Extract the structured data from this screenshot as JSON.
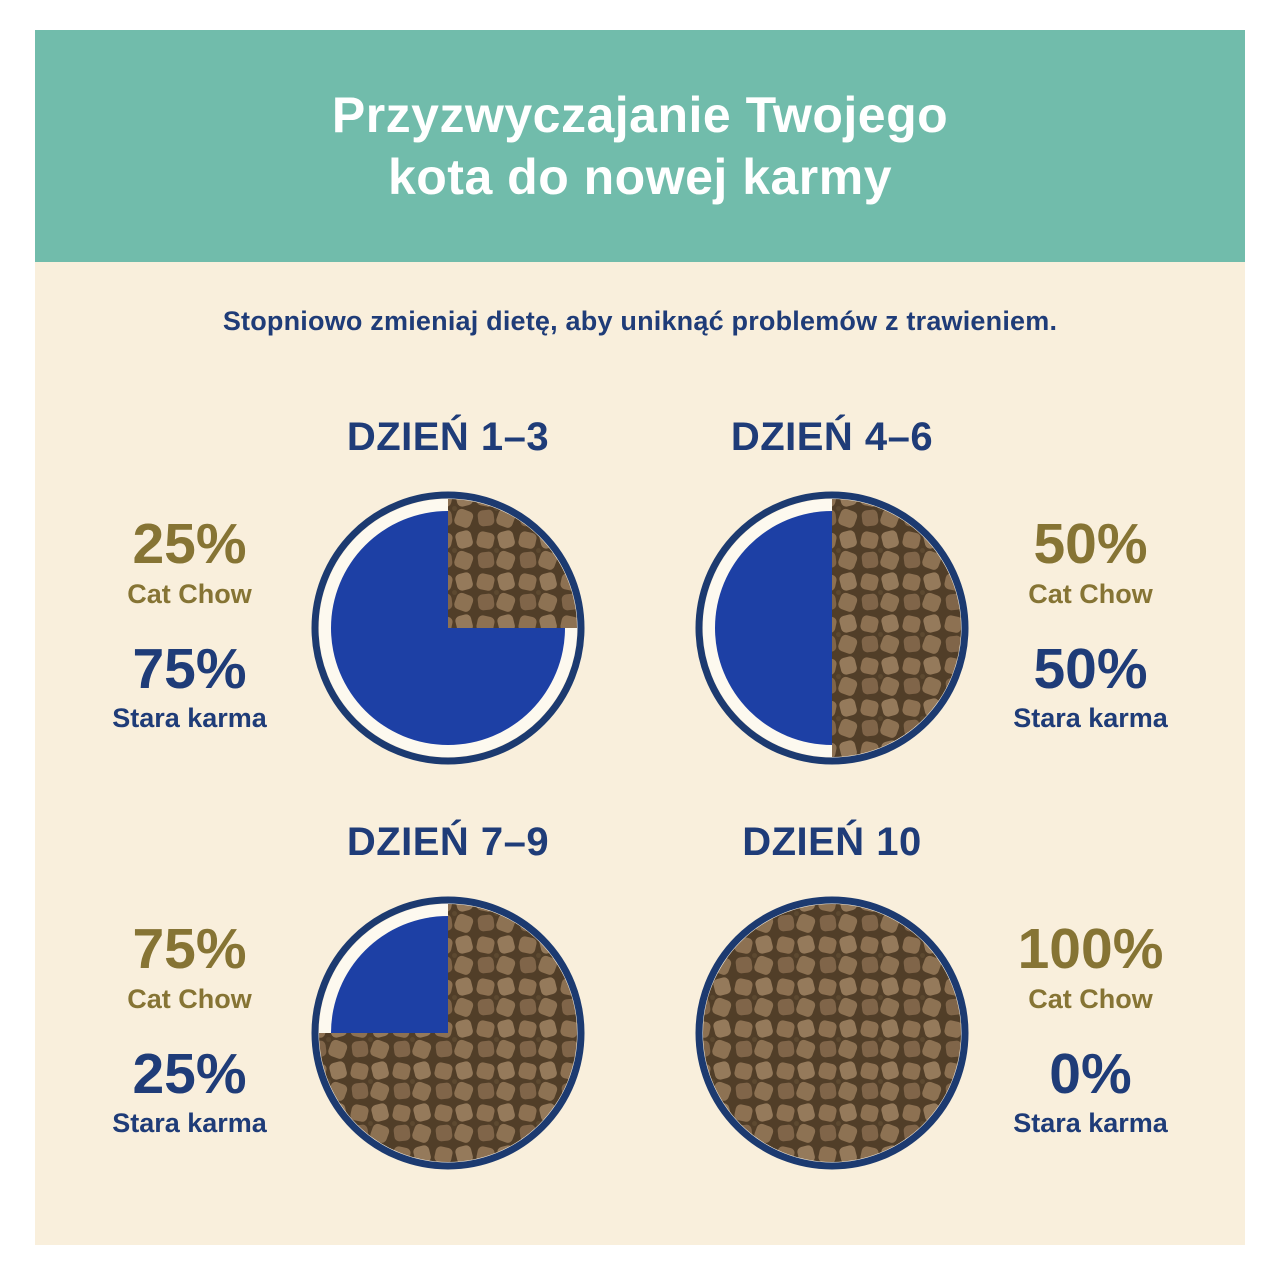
{
  "header": {
    "title_line1": "Przyzwyczajanie Twojego",
    "title_line2": "kota do nowej karmy"
  },
  "subtitle": "Stopniowo zmieniaj dietę, aby uniknąć problemów z trawieniem.",
  "colors": {
    "teal": "#71bcab",
    "cream": "#f9efdc",
    "navy": "#1f3c78",
    "gold": "#867434",
    "pie-blue": "#1d40a5",
    "pie-border": "#1c3a70",
    "pie-inner-bg": "#fdf9ef"
  },
  "days": [
    {
      "label": "DZIEŃ 1–3",
      "new_pct": "25%",
      "new_label": "Cat Chow",
      "old_pct": "75%",
      "old_label": "Stara karma",
      "new_food_percent": 25
    },
    {
      "label": "DZIEŃ 4–6",
      "new_pct": "50%",
      "new_label": "Cat Chow",
      "old_pct": "50%",
      "old_label": "Stara karma",
      "new_food_percent": 50
    },
    {
      "label": "DZIEŃ 7–9",
      "new_pct": "75%",
      "new_label": "Cat Chow",
      "old_pct": "25%",
      "old_label": "Stara karma",
      "new_food_percent": 75
    },
    {
      "label": "DZIEŃ 10",
      "new_pct": "100%",
      "new_label": "Cat Chow",
      "old_pct": "0%",
      "old_label": "Stara karma",
      "new_food_percent": 100
    }
  ],
  "chart_data": [
    {
      "type": "pie",
      "title": "DZIEŃ 1–3",
      "labels": [
        "Cat Chow",
        "Stara karma"
      ],
      "values": [
        25,
        75
      ]
    },
    {
      "type": "pie",
      "title": "DZIEŃ 4–6",
      "labels": [
        "Cat Chow",
        "Stara karma"
      ],
      "values": [
        50,
        50
      ]
    },
    {
      "type": "pie",
      "title": "DZIEŃ 7–9",
      "labels": [
        "Cat Chow",
        "Stara karma"
      ],
      "values": [
        75,
        25
      ]
    },
    {
      "type": "pie",
      "title": "DZIEŃ 10",
      "labels": [
        "Cat Chow",
        "Stara karma"
      ],
      "values": [
        100,
        0
      ]
    }
  ]
}
